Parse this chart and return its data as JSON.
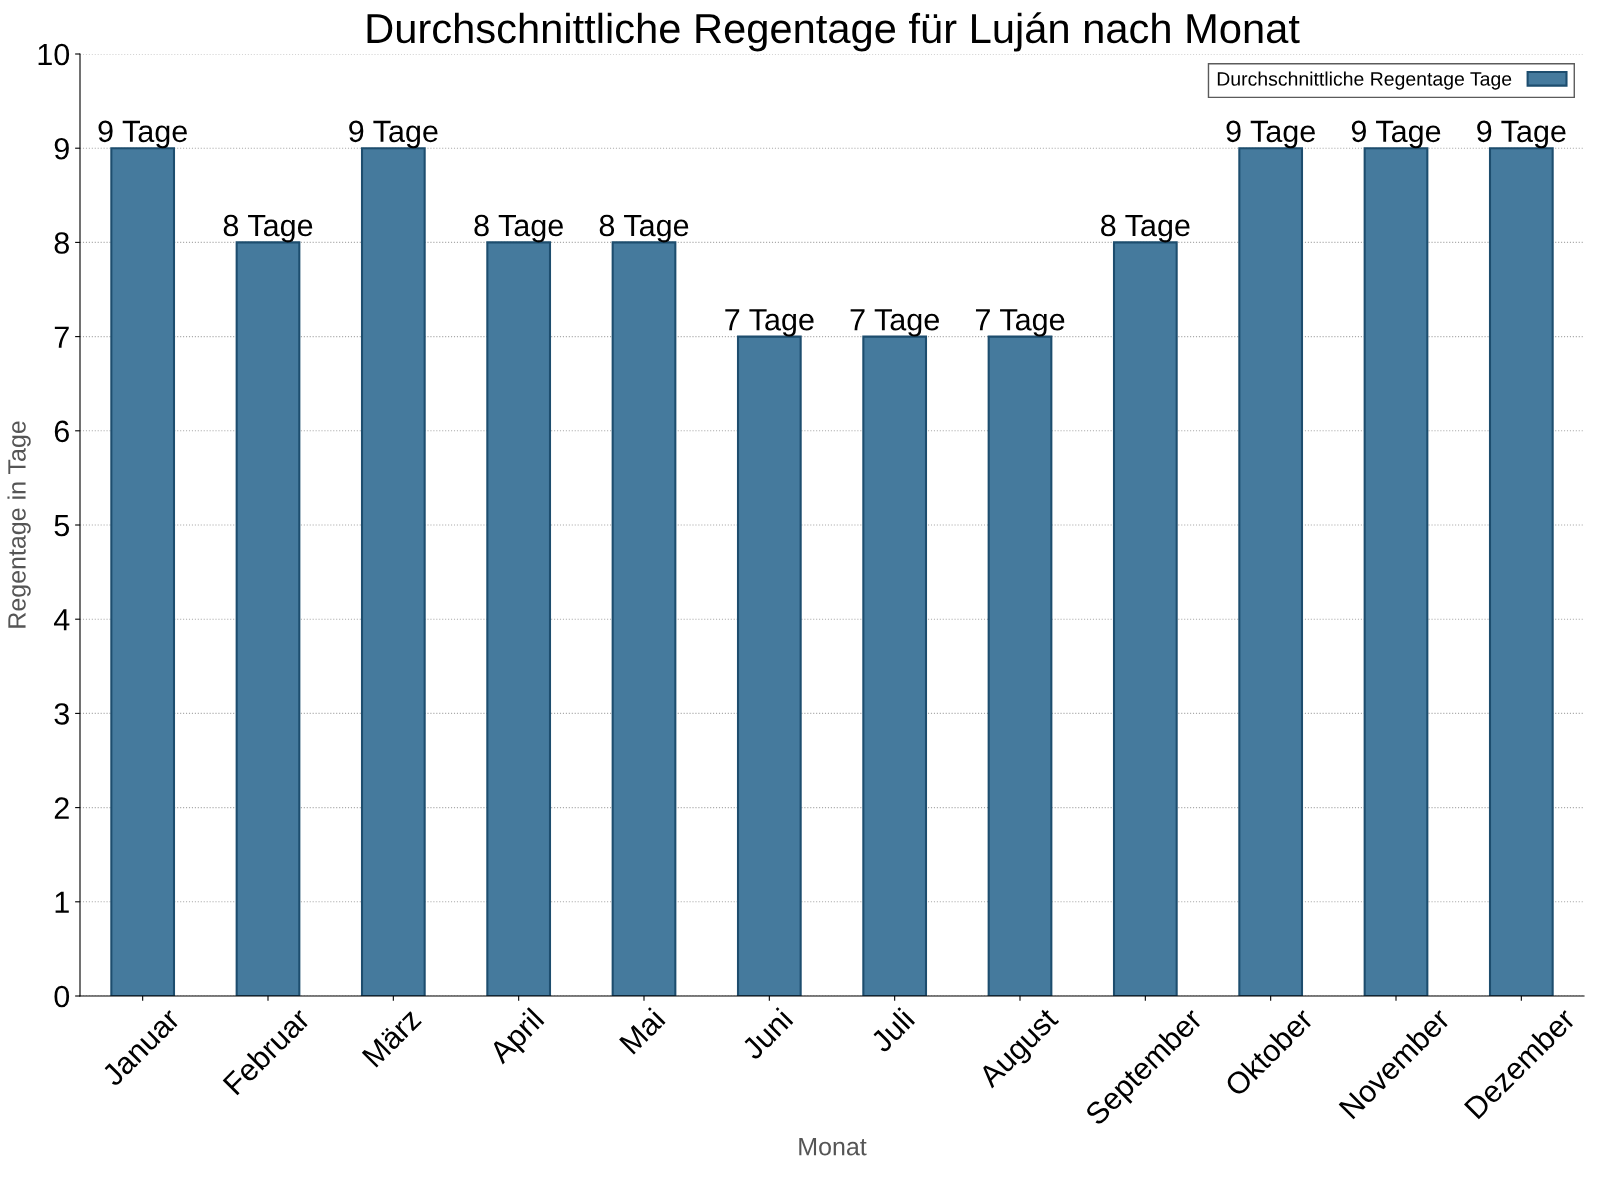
{
  "chart_data": {
    "type": "bar",
    "title": "Durchschnittliche Regentage für Luján nach Monat",
    "xlabel": "Monat",
    "ylabel": "Regentage in Tage",
    "categories": [
      "Januar",
      "Februar",
      "März",
      "April",
      "Mai",
      "Juni",
      "Juli",
      "August",
      "September",
      "Oktober",
      "November",
      "Dezember"
    ],
    "series": [
      {
        "name": "Durchschnittliche Regentage Tage",
        "color": "#457a9d",
        "values": [
          9,
          8,
          9,
          8,
          8,
          7,
          7,
          7,
          8,
          9,
          9,
          9
        ],
        "value_labels": [
          "9 Tage",
          "8 Tage",
          "9 Tage",
          "8 Tage",
          "8 Tage",
          "7 Tage",
          "7 Tage",
          "7 Tage",
          "8 Tage",
          "9 Tage",
          "9 Tage",
          "9 Tage"
        ]
      }
    ],
    "ylim": [
      0,
      10
    ],
    "yticks": [
      0,
      1,
      2,
      3,
      4,
      5,
      6,
      7,
      8,
      9,
      10
    ],
    "grid": "y",
    "legend": "top right"
  }
}
